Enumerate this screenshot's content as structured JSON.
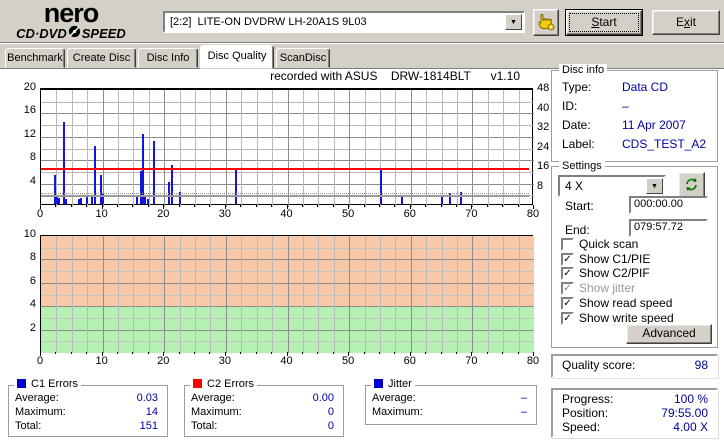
{
  "header": {
    "brand": "nero",
    "product_left": "CD·DVD",
    "product_right": "SPEED",
    "drive_selector": "[2:2]  LITE-ON DVDRW LH-20A1S 9L03",
    "start_label": "Start",
    "start_accel": "S",
    "exit_label": "Exit",
    "exit_accel": "x"
  },
  "tabs": [
    {
      "label": "Benchmark",
      "active": false
    },
    {
      "label": "Create Disc",
      "active": false
    },
    {
      "label": "Disc Info",
      "active": false
    },
    {
      "label": "Disc Quality",
      "active": true
    },
    {
      "label": "ScanDisc",
      "active": false
    }
  ],
  "chart_data": [
    {
      "type": "line",
      "title": "recorded with ASUS    DRW-1814BLT      v1.10",
      "x_axis": {
        "range": [
          0,
          80
        ],
        "ticks": [
          0,
          10,
          20,
          30,
          40,
          50,
          60,
          70,
          80
        ],
        "minor_step": 2.5
      },
      "y_axis_left": {
        "name": "C1 errors",
        "range": [
          0,
          20
        ],
        "ticks": [
          4,
          8,
          12,
          16,
          20
        ],
        "minor_step": 2
      },
      "y_axis_right": {
        "name": "speed",
        "range": [
          0,
          48
        ],
        "ticks": [
          8,
          16,
          24,
          32,
          40,
          48
        ]
      },
      "grid": true,
      "series": [
        {
          "name": "C1 errors",
          "type": "spikes",
          "color": "#1414dd",
          "points": [
            [
              2.3,
              5
            ],
            [
              2.6,
              1.5
            ],
            [
              2.9,
              1.1
            ],
            [
              3.7,
              14
            ],
            [
              4.0,
              0.8
            ],
            [
              6.2,
              0.9
            ],
            [
              6.5,
              1.0
            ],
            [
              7.5,
              1.3
            ],
            [
              8.2,
              1.5
            ],
            [
              8.7,
              10
            ],
            [
              9.7,
              5
            ],
            [
              10.0,
              1.7
            ],
            [
              15.5,
              1.3
            ],
            [
              16.2,
              5.6
            ],
            [
              16.5,
              12
            ],
            [
              16.9,
              1.5
            ],
            [
              17.3,
              0.8
            ],
            [
              18.3,
              10.7
            ],
            [
              20.8,
              3.8
            ],
            [
              21.3,
              6.6
            ],
            [
              22.6,
              2.1
            ],
            [
              31.7,
              5.8
            ],
            [
              55.2,
              5.8
            ],
            [
              58.6,
              1.5
            ],
            [
              65.1,
              1.3
            ],
            [
              66.4,
              1.8
            ],
            [
              68.2,
              2.0
            ]
          ]
        },
        {
          "name": "error limit",
          "type": "hline",
          "color": "#ff0000",
          "y": 6,
          "x_end": 79.2
        },
        {
          "name": "write speed 4x",
          "type": "hline",
          "color": "#9a9a9a",
          "y": 1.3,
          "x_end": 79.2
        },
        {
          "name": "read speed 4x",
          "type": "hline_dotted",
          "color": "#909090",
          "y": 1.65,
          "x_end": 79.2
        }
      ]
    },
    {
      "type": "area",
      "title": "jitter scale",
      "x_axis": {
        "range": [
          0,
          80
        ],
        "ticks": [
          0,
          10,
          20,
          30,
          40,
          50,
          60,
          70,
          80
        ],
        "minor_step": 2.5
      },
      "y_axis_left": {
        "name": "jitter",
        "range": [
          0,
          10
        ],
        "ticks": [
          2,
          4,
          6,
          8,
          10
        ],
        "minor_step": 1
      },
      "grid": true,
      "zones": [
        {
          "from": 4,
          "to": 10,
          "color": "#f8c9a9"
        },
        {
          "from": 0,
          "to": 4,
          "color": "#b5f0b5"
        }
      ],
      "series": []
    }
  ],
  "disc_info": {
    "title": "Disc info",
    "rows": [
      {
        "label": "Type:",
        "value": "Data CD"
      },
      {
        "label": "ID:",
        "value": "–"
      },
      {
        "label": "Date:",
        "value": "11 Apr 2007"
      },
      {
        "label": "Label:",
        "value": "CDS_TEST_A2"
      }
    ]
  },
  "settings": {
    "title": "Settings",
    "speed_selected": "4 X",
    "refresh_icon": "refresh-icon",
    "start_label": "Start:",
    "start_value": "000:00.00",
    "end_label": "End:",
    "end_value": "079:57.72",
    "checkboxes": [
      {
        "label": "Quick scan",
        "checked": false,
        "enabled": true
      },
      {
        "label": "Show C1/PIE",
        "checked": true,
        "enabled": true
      },
      {
        "label": "Show C2/PIF",
        "checked": true,
        "enabled": true
      },
      {
        "label": "Show jitter",
        "checked": true,
        "enabled": false
      },
      {
        "label": "Show read speed",
        "checked": true,
        "enabled": true
      },
      {
        "label": "Show write speed",
        "checked": true,
        "enabled": true
      }
    ],
    "advanced_label": "Advanced"
  },
  "quality": {
    "label": "Quality score:",
    "value": "98"
  },
  "progress": {
    "rows": [
      {
        "label": "Progress:",
        "value": "100 %"
      },
      {
        "label": "Position:",
        "value": "79:55.00"
      },
      {
        "label": "Speed:",
        "value": "4.00 X"
      }
    ]
  },
  "stats_panels": [
    {
      "title": "C1  Errors",
      "legend_color": "#0000cc",
      "rows": [
        {
          "label": "Average:",
          "value": "0.03"
        },
        {
          "label": "Maximum:",
          "value": "14"
        },
        {
          "label": "Total:",
          "value": "151"
        }
      ]
    },
    {
      "title": "C2 Errors",
      "legend_color": "#ff0000",
      "rows": [
        {
          "label": "Average:",
          "value": "0.00"
        },
        {
          "label": "Maximum:",
          "value": "0"
        },
        {
          "label": "Total:",
          "value": "0"
        }
      ]
    },
    {
      "title": "Jitter",
      "legend_color": "#0000cc",
      "rows": [
        {
          "label": "Average:",
          "value": "–"
        },
        {
          "label": "Maximum:",
          "value": "–"
        }
      ]
    }
  ]
}
